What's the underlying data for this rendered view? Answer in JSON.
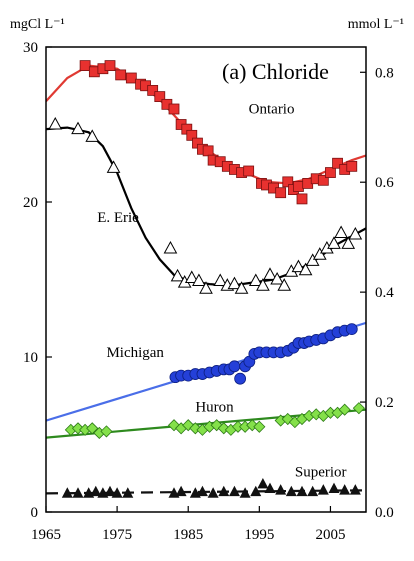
{
  "chart_data": {
    "type": "scatter",
    "title": "(a) Chloride",
    "left_unit": "mgCl L⁻¹",
    "right_unit": "mmol L⁻¹",
    "xlim": [
      1965,
      2010
    ],
    "ylim": [
      0,
      30
    ],
    "ylim_right": [
      0,
      0.846
    ],
    "x_ticks": [
      1965,
      1975,
      1985,
      1995,
      2005
    ],
    "x_tick_labels": [
      "1965",
      "1975",
      "1985",
      "1995",
      "2005"
    ],
    "y_ticks": [
      0,
      10,
      20,
      30
    ],
    "y_tick_labels": [
      "0",
      "10",
      "20",
      "30"
    ],
    "y_right_ticks": [
      0.0,
      0.2,
      0.4,
      0.6,
      0.8
    ],
    "y_right_tick_labels": [
      "0.0",
      "0.2",
      "0.4",
      "0.6",
      "0.8"
    ],
    "series": [
      {
        "name": "Ontario",
        "marker": "square",
        "color": "#e8312f",
        "line_color": "#e03a33",
        "label_at": [
          1993.5,
          25.7
        ],
        "fit": [
          [
            1965,
            26.5
          ],
          [
            1968,
            28.0
          ],
          [
            1971,
            28.8
          ],
          [
            1975,
            28.6
          ],
          [
            1978,
            27.7
          ],
          [
            1981,
            26.6
          ],
          [
            1984,
            25.1
          ],
          [
            1987,
            23.6
          ],
          [
            1990,
            22.6
          ],
          [
            1993,
            21.9
          ],
          [
            1996,
            21.3
          ],
          [
            1999,
            21.2
          ],
          [
            2002,
            21.5
          ],
          [
            2005,
            22.1
          ],
          [
            2008,
            22.7
          ],
          [
            2010,
            23.0
          ]
        ],
        "points": [
          [
            1970.5,
            28.8
          ],
          [
            1971.8,
            28.4
          ],
          [
            1973,
            28.6
          ],
          [
            1974,
            28.8
          ],
          [
            1975.5,
            28.2
          ],
          [
            1977,
            28.0
          ],
          [
            1978.3,
            27.6
          ],
          [
            1979,
            27.5
          ],
          [
            1980,
            27.2
          ],
          [
            1981,
            26.8
          ],
          [
            1982,
            26.3
          ],
          [
            1983,
            26.0
          ],
          [
            1984,
            25.0
          ],
          [
            1984.8,
            24.7
          ],
          [
            1985.5,
            24.3
          ],
          [
            1986.3,
            23.8
          ],
          [
            1987,
            23.4
          ],
          [
            1987.8,
            23.3
          ],
          [
            1988.5,
            22.7
          ],
          [
            1989.5,
            22.6
          ],
          [
            1990.5,
            22.3
          ],
          [
            1991.5,
            22.1
          ],
          [
            1992.5,
            21.9
          ],
          [
            1993.5,
            22.0
          ],
          [
            1995.3,
            21.2
          ],
          [
            1996,
            21.1
          ],
          [
            1997,
            20.9
          ],
          [
            1998,
            20.6
          ],
          [
            1999,
            21.3
          ],
          [
            1999.8,
            20.8
          ],
          [
            2000.5,
            21.0
          ],
          [
            2001,
            20.2
          ],
          [
            2001.8,
            21.2
          ],
          [
            2003,
            21.5
          ],
          [
            2004,
            21.4
          ],
          [
            2005,
            21.9
          ],
          [
            2006,
            22.5
          ],
          [
            2007,
            22.1
          ],
          [
            2008,
            22.3
          ]
        ]
      },
      {
        "name": "E. Erie",
        "marker": "triangle-open",
        "color": "#ffffff",
        "line_color": "#000000",
        "label_at": [
          1972.2,
          18.7
        ],
        "fit": [
          [
            1965,
            24.7
          ],
          [
            1968,
            24.8
          ],
          [
            1971,
            24.5
          ],
          [
            1973,
            23.6
          ],
          [
            1975,
            21.9
          ],
          [
            1977,
            19.6
          ],
          [
            1979,
            17.7
          ],
          [
            1981,
            16.3
          ],
          [
            1983,
            15.3
          ],
          [
            1985,
            14.9
          ],
          [
            1988,
            14.7
          ],
          [
            1991,
            14.6
          ],
          [
            1994,
            14.8
          ],
          [
            1997,
            15.0
          ],
          [
            2000,
            15.5
          ],
          [
            2003,
            16.3
          ],
          [
            2006,
            17.3
          ],
          [
            2010,
            18.3
          ]
        ],
        "points": [
          [
            1966.3,
            25.0
          ],
          [
            1969.5,
            24.7
          ],
          [
            1971.5,
            24.2
          ],
          [
            1974.5,
            22.2
          ],
          [
            1982.5,
            17.0
          ],
          [
            1983.5,
            15.2
          ],
          [
            1984.5,
            14.8
          ],
          [
            1985.5,
            15.1
          ],
          [
            1986.5,
            14.9
          ],
          [
            1987.5,
            14.4
          ],
          [
            1989.5,
            14.9
          ],
          [
            1990.5,
            14.6
          ],
          [
            1991.5,
            14.7
          ],
          [
            1992.5,
            14.4
          ],
          [
            1994.5,
            14.9
          ],
          [
            1995.5,
            14.6
          ],
          [
            1996.5,
            15.3
          ],
          [
            1997.5,
            15.0
          ],
          [
            1998.5,
            14.6
          ],
          [
            1999.5,
            15.5
          ],
          [
            2000.5,
            15.8
          ],
          [
            2001.5,
            15.6
          ],
          [
            2002.5,
            16.2
          ],
          [
            2003.5,
            16.6
          ],
          [
            2004.5,
            17.0
          ],
          [
            2005.5,
            17.3
          ],
          [
            2006.5,
            18.0
          ],
          [
            2007.5,
            17.3
          ],
          [
            2008.5,
            17.9
          ]
        ]
      },
      {
        "name": "Michigan",
        "marker": "circle",
        "color": "#2440d8",
        "line_color": "#4a6ee8",
        "label_at": [
          1973.5,
          10.0
        ],
        "fit": [
          [
            1965,
            5.9
          ],
          [
            2010,
            12.2
          ]
        ],
        "points": [
          [
            1983.2,
            8.7
          ],
          [
            1984,
            8.8
          ],
          [
            1985,
            8.8
          ],
          [
            1986,
            8.9
          ],
          [
            1987,
            8.9
          ],
          [
            1988,
            9.0
          ],
          [
            1989,
            9.1
          ],
          [
            1990,
            9.2
          ],
          [
            1990.8,
            9.2
          ],
          [
            1991.5,
            9.4
          ],
          [
            1992.3,
            8.6
          ],
          [
            1993,
            9.4
          ],
          [
            1993.6,
            9.7
          ],
          [
            1994.3,
            10.2
          ],
          [
            1995,
            10.3
          ],
          [
            1996,
            10.3
          ],
          [
            1997,
            10.3
          ],
          [
            1998,
            10.3
          ],
          [
            1999,
            10.4
          ],
          [
            1999.8,
            10.6
          ],
          [
            2000.5,
            10.9
          ],
          [
            2001.3,
            10.9
          ],
          [
            2002,
            11.0
          ],
          [
            2003,
            11.1
          ],
          [
            2004,
            11.2
          ],
          [
            2005,
            11.4
          ],
          [
            2006,
            11.6
          ],
          [
            2007,
            11.7
          ],
          [
            2008,
            11.8
          ]
        ]
      },
      {
        "name": "Huron",
        "marker": "diamond",
        "color": "#84e04a",
        "line_color": "#2e8a1e",
        "label_at": [
          1986,
          6.5
        ],
        "fit": [
          [
            1965,
            4.8
          ],
          [
            2010,
            6.6
          ]
        ],
        "points": [
          [
            1968.5,
            5.3
          ],
          [
            1969.5,
            5.4
          ],
          [
            1970.5,
            5.3
          ],
          [
            1971.5,
            5.4
          ],
          [
            1972.5,
            5.1
          ],
          [
            1973.5,
            5.2
          ],
          [
            1983,
            5.6
          ],
          [
            1984,
            5.4
          ],
          [
            1985,
            5.6
          ],
          [
            1986,
            5.4
          ],
          [
            1987,
            5.3
          ],
          [
            1988,
            5.5
          ],
          [
            1989,
            5.6
          ],
          [
            1990,
            5.4
          ],
          [
            1991,
            5.3
          ],
          [
            1992,
            5.5
          ],
          [
            1993,
            5.5
          ],
          [
            1994,
            5.6
          ],
          [
            1995,
            5.5
          ],
          [
            1998,
            5.9
          ],
          [
            1999,
            6.0
          ],
          [
            2000,
            5.8
          ],
          [
            2001,
            6.0
          ],
          [
            2002,
            6.2
          ],
          [
            2003,
            6.3
          ],
          [
            2004,
            6.2
          ],
          [
            2005,
            6.4
          ],
          [
            2006,
            6.4
          ],
          [
            2007,
            6.6
          ],
          [
            2009,
            6.7
          ]
        ]
      },
      {
        "name": "Superior",
        "marker": "triangle",
        "color": "#111111",
        "line_color": "#111111",
        "dashed": true,
        "label_at": [
          2000,
          2.3
        ],
        "fit": [
          [
            1965,
            1.2
          ],
          [
            2010,
            1.4
          ]
        ],
        "points": [
          [
            1968,
            1.2
          ],
          [
            1969.5,
            1.2
          ],
          [
            1971,
            1.2
          ],
          [
            1972,
            1.3
          ],
          [
            1973,
            1.2
          ],
          [
            1974,
            1.3
          ],
          [
            1975,
            1.2
          ],
          [
            1976.5,
            1.2
          ],
          [
            1983,
            1.2
          ],
          [
            1984,
            1.3
          ],
          [
            1986,
            1.2
          ],
          [
            1987,
            1.3
          ],
          [
            1988.5,
            1.2
          ],
          [
            1990,
            1.3
          ],
          [
            1991.5,
            1.3
          ],
          [
            1993,
            1.2
          ],
          [
            1994.5,
            1.3
          ],
          [
            1995.5,
            1.8
          ],
          [
            1996.5,
            1.5
          ],
          [
            1998,
            1.4
          ],
          [
            1999.5,
            1.3
          ],
          [
            2001,
            1.3
          ],
          [
            2002.5,
            1.3
          ],
          [
            2004,
            1.4
          ],
          [
            2005.5,
            1.5
          ],
          [
            2007,
            1.4
          ],
          [
            2008.5,
            1.4
          ]
        ]
      }
    ]
  }
}
